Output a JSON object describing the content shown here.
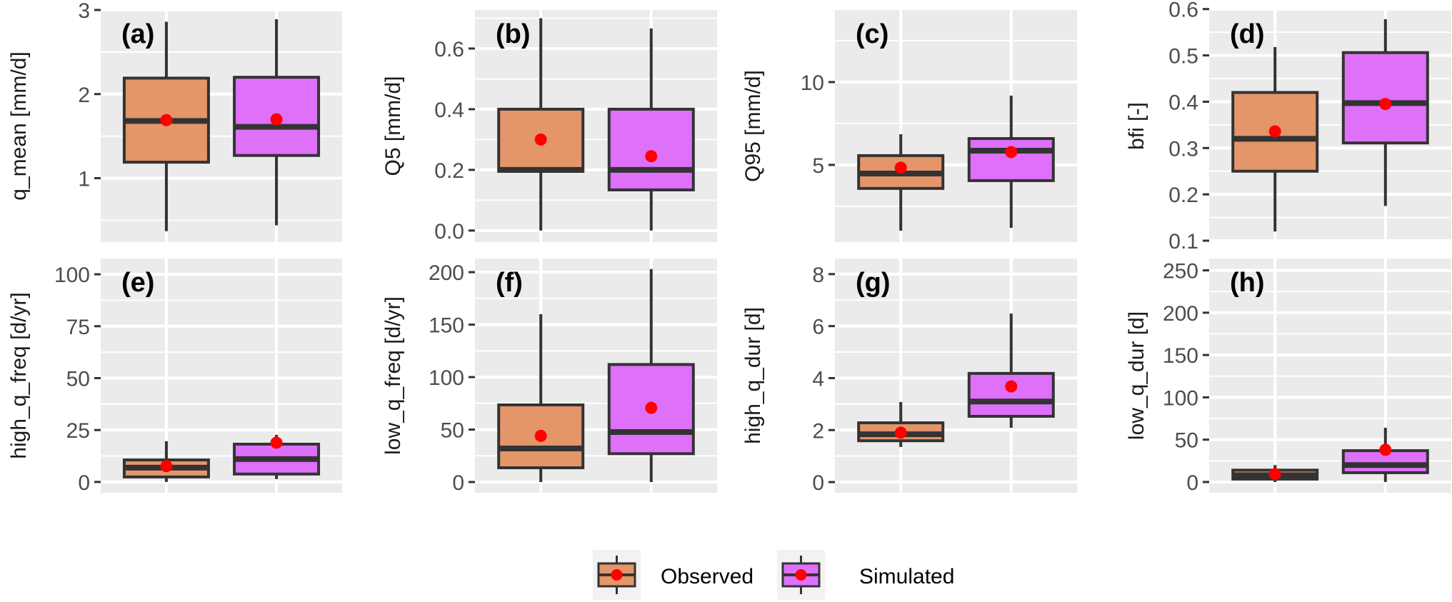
{
  "chart_data": [
    {
      "type": "box",
      "tag": "(a)",
      "ylabel": "q_mean [mm/d]",
      "ylim": [
        0.24,
        3.0
      ],
      "yticks": [
        1,
        2,
        3
      ],
      "ytick_labels": [
        "1",
        "2",
        "3"
      ],
      "grid": true,
      "categories": [
        "Observed",
        "Simulated"
      ],
      "series": [
        {
          "name": "Observed",
          "whisker_low": 0.37,
          "q1": 1.19,
          "median": 1.68,
          "q3": 2.19,
          "whisker_high": 2.86,
          "mean": 1.69
        },
        {
          "name": "Simulated",
          "whisker_low": 0.44,
          "q1": 1.27,
          "median": 1.61,
          "q3": 2.2,
          "whisker_high": 2.89,
          "mean": 1.7
        }
      ]
    },
    {
      "type": "box",
      "tag": "(b)",
      "ylabel": "Q5 [mm/d]",
      "ylim": [
        -0.038,
        0.727
      ],
      "yticks": [
        0.0,
        0.2,
        0.4,
        0.6
      ],
      "ytick_labels": [
        "0.0",
        "0.2",
        "0.4",
        "0.6"
      ],
      "grid": true,
      "categories": [
        "Observed",
        "Simulated"
      ],
      "series": [
        {
          "name": "Observed",
          "whisker_low": 0.0,
          "q1": 0.195,
          "median": 0.2,
          "q3": 0.4,
          "whisker_high": 0.7,
          "mean": 0.3
        },
        {
          "name": "Simulated",
          "whisker_low": 0.0,
          "q1": 0.134,
          "median": 0.2,
          "q3": 0.4,
          "whisker_high": 0.666,
          "mean": 0.245
        }
      ]
    },
    {
      "type": "box",
      "tag": "(c)",
      "ylabel": "Q95 [mm/d]",
      "ylim": [
        0.34,
        14.35
      ],
      "yticks": [
        5,
        10
      ],
      "ytick_labels": [
        "5",
        "10"
      ],
      "grid": true,
      "categories": [
        "Observed",
        "Simulated"
      ],
      "series": [
        {
          "name": "Observed",
          "whisker_low": 1.03,
          "q1": 3.58,
          "median": 4.48,
          "q3": 5.56,
          "whisker_high": 6.85,
          "mean": 4.83
        },
        {
          "name": "Simulated",
          "whisker_low": 1.2,
          "q1": 4.05,
          "median": 5.86,
          "q3": 6.59,
          "whisker_high": 9.18,
          "mean": 5.77
        }
      ]
    },
    {
      "type": "box",
      "tag": "(d)",
      "ylabel": "bfi [-]",
      "ylim": [
        0.097,
        0.598
      ],
      "yticks": [
        0.1,
        0.2,
        0.3,
        0.4,
        0.5,
        0.6
      ],
      "ytick_labels": [
        "0.1",
        "0.2",
        "0.3",
        "0.4",
        "0.5",
        "0.6"
      ],
      "grid": true,
      "categories": [
        "Observed",
        "Simulated"
      ],
      "series": [
        {
          "name": "Observed",
          "whisker_low": 0.12,
          "q1": 0.25,
          "median": 0.32,
          "q3": 0.42,
          "whisker_high": 0.518,
          "mean": 0.336
        },
        {
          "name": "Simulated",
          "whisker_low": 0.175,
          "q1": 0.311,
          "median": 0.397,
          "q3": 0.506,
          "whisker_high": 0.578,
          "mean": 0.395
        }
      ]
    },
    {
      "type": "box",
      "tag": "(e)",
      "ylabel": "high_q_freq [d/yr]",
      "ylim": [
        -5.2,
        107.6
      ],
      "yticks": [
        0,
        25,
        50,
        75,
        100
      ],
      "ytick_labels": [
        "0",
        "25",
        "50",
        "75",
        "100"
      ],
      "grid": true,
      "categories": [
        "Observed",
        "Simulated"
      ],
      "series": [
        {
          "name": "Observed",
          "whisker_low": 0.0,
          "q1": 2.4,
          "median": 6.9,
          "q3": 10.6,
          "whisker_high": 19.6,
          "mean": 7.6
        },
        {
          "name": "Simulated",
          "whisker_low": 1.4,
          "q1": 3.8,
          "median": 11.0,
          "q3": 18.2,
          "whisker_high": 22.7,
          "mean": 18.9
        }
      ]
    },
    {
      "type": "box",
      "tag": "(f)",
      "ylabel": "low_q_freq [d/yr]",
      "ylim": [
        -10.2,
        213
      ],
      "yticks": [
        0,
        50,
        100,
        150,
        200
      ],
      "ytick_labels": [
        "0",
        "50",
        "100",
        "150",
        "200"
      ],
      "grid": true,
      "categories": [
        "Observed",
        "Simulated"
      ],
      "series": [
        {
          "name": "Observed",
          "whisker_low": 0.0,
          "q1": 13.6,
          "median": 32.0,
          "q3": 73.5,
          "whisker_high": 160.0,
          "mean": 44.0
        },
        {
          "name": "Simulated",
          "whisker_low": 0.0,
          "q1": 27.0,
          "median": 47.6,
          "q3": 112.0,
          "whisker_high": 203.0,
          "mean": 70.7
        }
      ]
    },
    {
      "type": "box",
      "tag": "(g)",
      "ylabel": "high_q_dur [d]",
      "ylim": [
        -0.41,
        8.6
      ],
      "yticks": [
        0,
        2,
        4,
        6,
        8
      ],
      "ytick_labels": [
        "0",
        "2",
        "4",
        "6",
        "8"
      ],
      "grid": true,
      "categories": [
        "Observed",
        "Simulated"
      ],
      "series": [
        {
          "name": "Observed",
          "whisker_low": 1.35,
          "q1": 1.59,
          "median": 1.84,
          "q3": 2.28,
          "whisker_high": 3.08,
          "mean": 1.9
        },
        {
          "name": "Simulated",
          "whisker_low": 2.09,
          "q1": 2.53,
          "median": 3.1,
          "q3": 4.18,
          "whisker_high": 6.48,
          "mean": 3.68
        }
      ]
    },
    {
      "type": "box",
      "tag": "(h)",
      "ylabel": "low_q_dur [d]",
      "ylim": [
        -12.7,
        264
      ],
      "yticks": [
        0,
        50,
        100,
        150,
        200,
        250
      ],
      "ytick_labels": [
        "0",
        "50",
        "100",
        "150",
        "200",
        "250"
      ],
      "grid": true,
      "categories": [
        "Observed",
        "Simulated"
      ],
      "series": [
        {
          "name": "Observed",
          "whisker_low": 0.0,
          "q1": 3.4,
          "median": 8.0,
          "q3": 14.0,
          "whisker_high": 20.0,
          "mean": 9.3
        },
        {
          "name": "Simulated",
          "whisker_low": 0.0,
          "q1": 11.0,
          "median": 20.0,
          "q3": 37.0,
          "whisker_high": 64.0,
          "mean": 38.0
        }
      ]
    }
  ],
  "legend": {
    "position": "bottom",
    "items": [
      {
        "label": "Observed",
        "color": "#E4956A"
      },
      {
        "label": "Simulated",
        "color": "#DE70FA"
      }
    ]
  },
  "colors": {
    "panel_background": "#EBEBEB",
    "grid": "#FFFFFF",
    "box_outline": "#333333",
    "mean_marker": "#FF0000",
    "observed": "#E4956A",
    "simulated": "#DE70FA"
  }
}
